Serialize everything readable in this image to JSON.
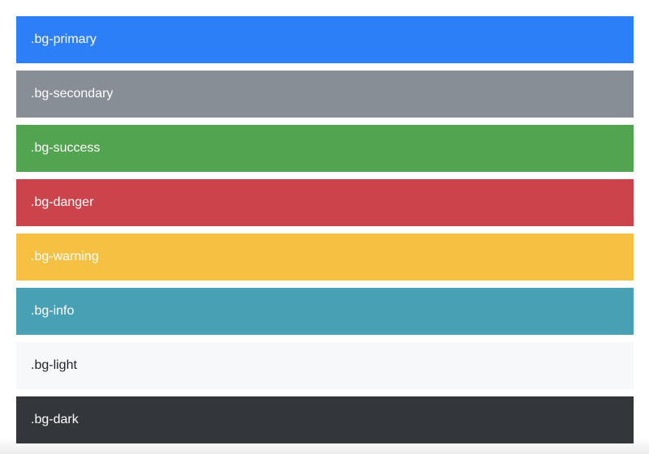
{
  "bars": [
    {
      "label": ".bg-primary",
      "color": "#2c7ff6",
      "text_color": "#ffffff"
    },
    {
      "label": ".bg-secondary",
      "color": "#878e95",
      "text_color": "#ffffff"
    },
    {
      "label": ".bg-success",
      "color": "#53a450",
      "text_color": "#ffffff"
    },
    {
      "label": ".bg-danger",
      "color": "#cb444b",
      "text_color": "#ffffff"
    },
    {
      "label": ".bg-warning",
      "color": "#f6c143",
      "text_color": "#ffffff"
    },
    {
      "label": ".bg-info",
      "color": "#48a0b4",
      "text_color": "#ffffff"
    },
    {
      "label": ".bg-light",
      "color": "#f7f8fa",
      "text_color": "#212529"
    },
    {
      "label": ".bg-dark",
      "color": "#33373b",
      "text_color": "#ffffff"
    }
  ]
}
